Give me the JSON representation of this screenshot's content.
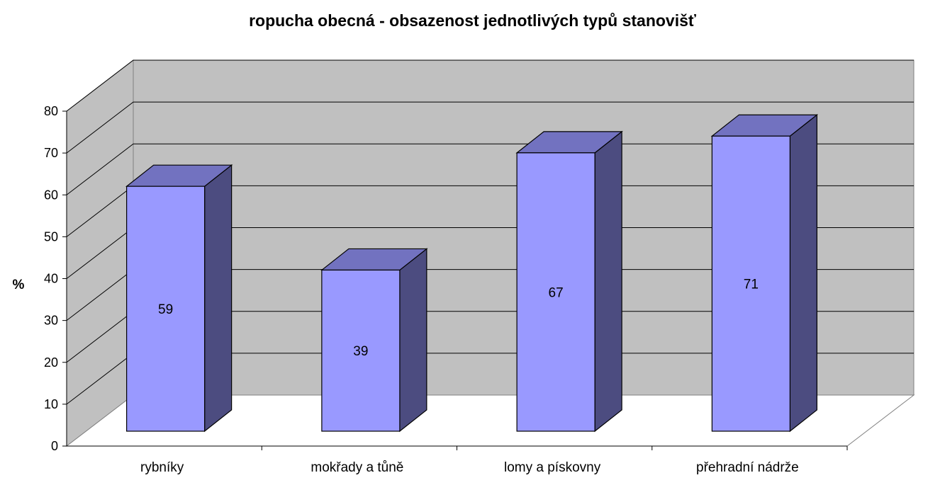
{
  "chart_data": {
    "type": "bar",
    "style": "3d-column",
    "title": "ropucha obecná - obsazenost jednotlivých typů stanovišť",
    "ylabel": "%",
    "xlabel": "",
    "categories": [
      "rybníky",
      "mokřady a tůně",
      "lomy a pískovny",
      "přehradní nádrže"
    ],
    "values": [
      59,
      39,
      67,
      71
    ],
    "data_labels": [
      "59",
      "39",
      "67",
      "71"
    ],
    "yticks": [
      "0",
      "10",
      "20",
      "30",
      "40",
      "50",
      "60",
      "70",
      "80"
    ],
    "ylim": [
      0,
      80
    ],
    "grid": true,
    "legend": "none",
    "colors": {
      "bar_front": "#9999FF",
      "bar_top": "#7272C0",
      "bar_side": "#4C4C80",
      "wall": "#C0C0C0",
      "floor": "#FFFFFF"
    }
  }
}
